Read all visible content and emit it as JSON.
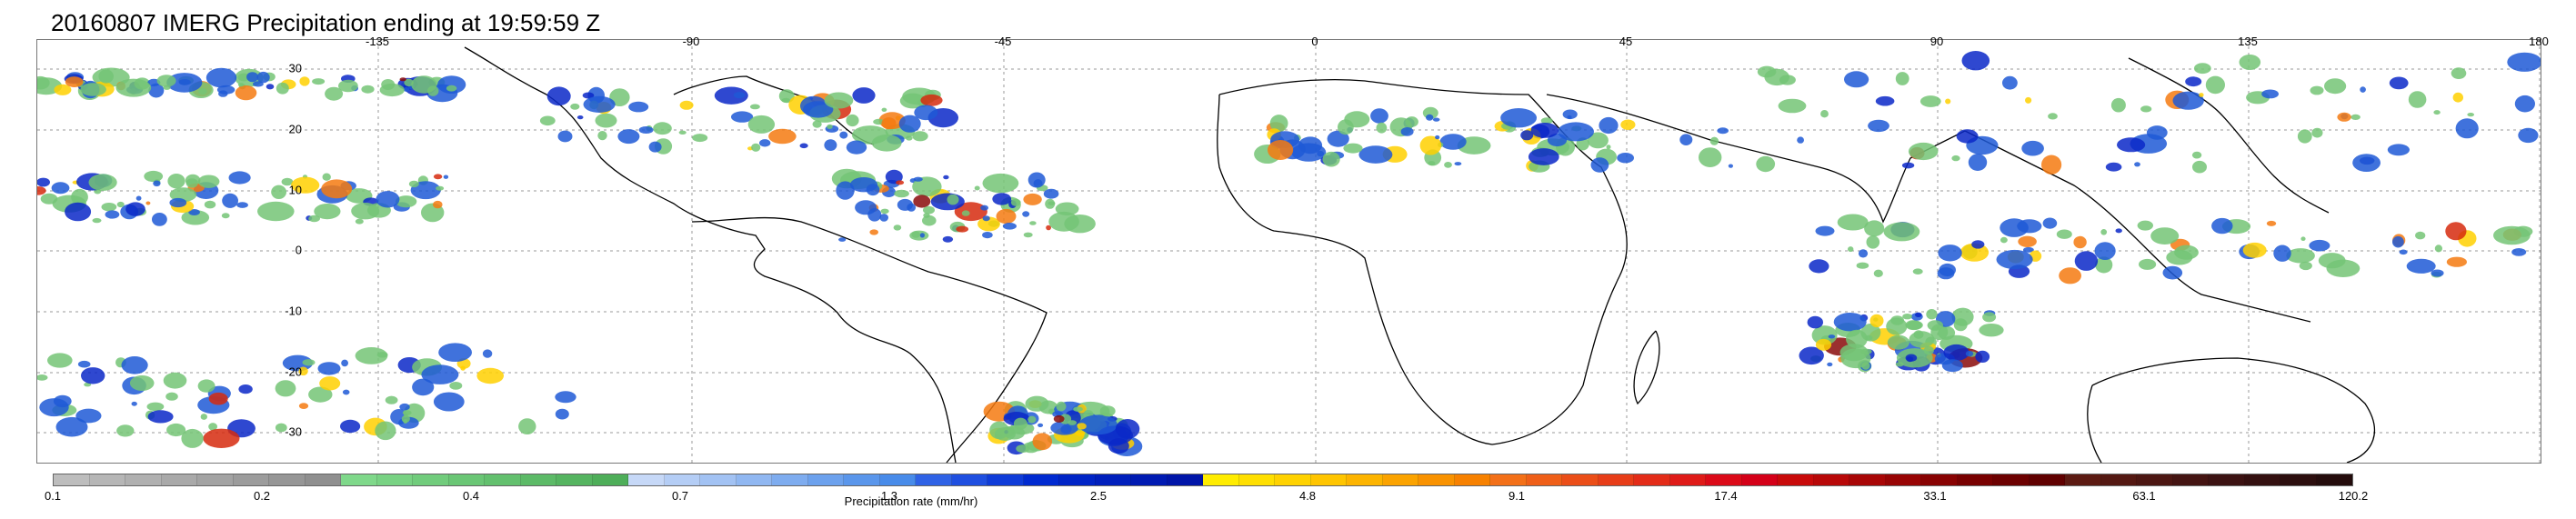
{
  "title": "20160807 IMERG Precipitation ending at 19:59:59 Z",
  "map": {
    "lon_ticks": [
      "-135",
      "-90",
      "-45",
      "0",
      "45",
      "90",
      "135",
      "180"
    ],
    "lat_ticks": [
      "30",
      "20",
      "10",
      "0",
      "-10",
      "-20",
      "-30"
    ],
    "grid_color": "#9a9a9a",
    "coast_color": "#000000",
    "precip_colors": [
      "#74c476",
      "#1f59d6",
      "#0a28c8",
      "#ffd000",
      "#f47a10",
      "#d62a0e",
      "#8a0a0a"
    ]
  },
  "colorbar": {
    "title": "Precipitation rate (mm/hr)",
    "labels": [
      "0.1",
      "0.2",
      "0.4",
      "0.7",
      "1.3",
      "2.5",
      "4.8",
      "9.1",
      "17.4",
      "33.1",
      "63.1",
      "120.2"
    ],
    "colors": [
      "#bdbdbd",
      "#b6b6b6",
      "#b0b0b0",
      "#a9a9a9",
      "#a3a3a3",
      "#9c9c9c",
      "#969696",
      "#8f8f8f",
      "#7fd88a",
      "#78d283",
      "#71cc7c",
      "#6ac675",
      "#63c06e",
      "#5cba67",
      "#55b460",
      "#4eae59",
      "#c6d8f7",
      "#b4cdf5",
      "#a2c2f3",
      "#90b7f1",
      "#7eacef",
      "#6ca1ed",
      "#5a96eb",
      "#488be9",
      "#2f62e5",
      "#1f4fe0",
      "#0f3cd8",
      "#002ad0",
      "#0024c6",
      "#001fbc",
      "#001ab2",
      "#0015a8",
      "#ffec00",
      "#ffdf00",
      "#ffd200",
      "#ffc500",
      "#fdb400",
      "#fba300",
      "#f99200",
      "#f78100",
      "#f37018",
      "#ef5f18",
      "#eb4e18",
      "#e73d18",
      "#e32c18",
      "#df1b18",
      "#db0a18",
      "#d40018",
      "#c80a0a",
      "#b80808",
      "#a80606",
      "#980404",
      "#880202",
      "#780000",
      "#6c0000",
      "#600000",
      "#5c1a12",
      "#541812",
      "#4c1612",
      "#441412",
      "#3c1212",
      "#341010",
      "#2c0e0e",
      "#240c0c"
    ]
  }
}
